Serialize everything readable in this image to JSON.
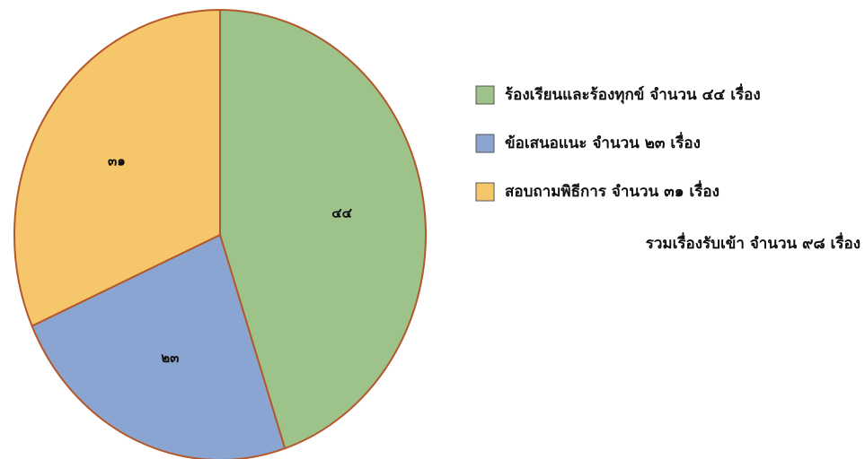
{
  "chart_data": {
    "type": "pie",
    "categories": [
      "ร้องเรียนและร้องทุกข์ จำนวน ๔๔ เรื่อง",
      "ข้อเสนอแนะ จำนวน ๒๓ เรื่อง",
      "สอบถามพิธีการ จำนวน ๓๑ เรื่อง"
    ],
    "values": [
      44,
      23,
      31
    ],
    "value_labels": [
      "๔๔",
      "๒๓",
      "๓๑"
    ],
    "colors": [
      "#9dc28a",
      "#8ba5d2",
      "#f5c66a"
    ],
    "annotation": "รวมเรื่องรับเข้า จำนวน  ๙๘  เรื่อง",
    "legend": "right"
  }
}
